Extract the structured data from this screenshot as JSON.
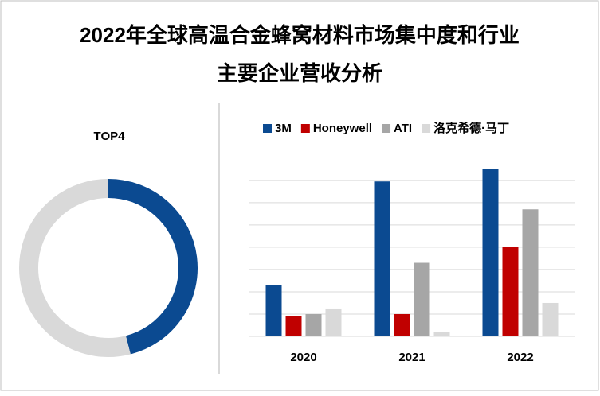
{
  "title": [
    "2022年全球高温合金蜂窝材料市场集中度和行业",
    "主要企业营收分析"
  ],
  "chart_data": [
    {
      "type": "donut",
      "title": "TOP4",
      "values": [
        46,
        54
      ],
      "colors": [
        "#0b4a91",
        "#d9d9d9"
      ]
    },
    {
      "type": "bar",
      "categories": [
        "2020",
        "2021",
        "2022"
      ],
      "series": [
        {
          "name": "3M",
          "color": "#0b4a91",
          "values": [
            2.3,
            6.95,
            7.5
          ]
        },
        {
          "name": "Honeywell",
          "color": "#c00000",
          "values": [
            0.9,
            1.0,
            4.0
          ]
        },
        {
          "name": "ATI",
          "color": "#a6a6a6",
          "values": [
            1.0,
            3.3,
            5.7
          ]
        },
        {
          "name": "洛克希德·马丁",
          "color": "#d9d9d9",
          "values": [
            1.25,
            0.2,
            1.5
          ]
        }
      ],
      "ylim": [
        0,
        7.6
      ],
      "yticks": [
        0,
        1,
        2,
        3,
        4,
        5,
        6,
        7
      ],
      "grid": true
    }
  ]
}
